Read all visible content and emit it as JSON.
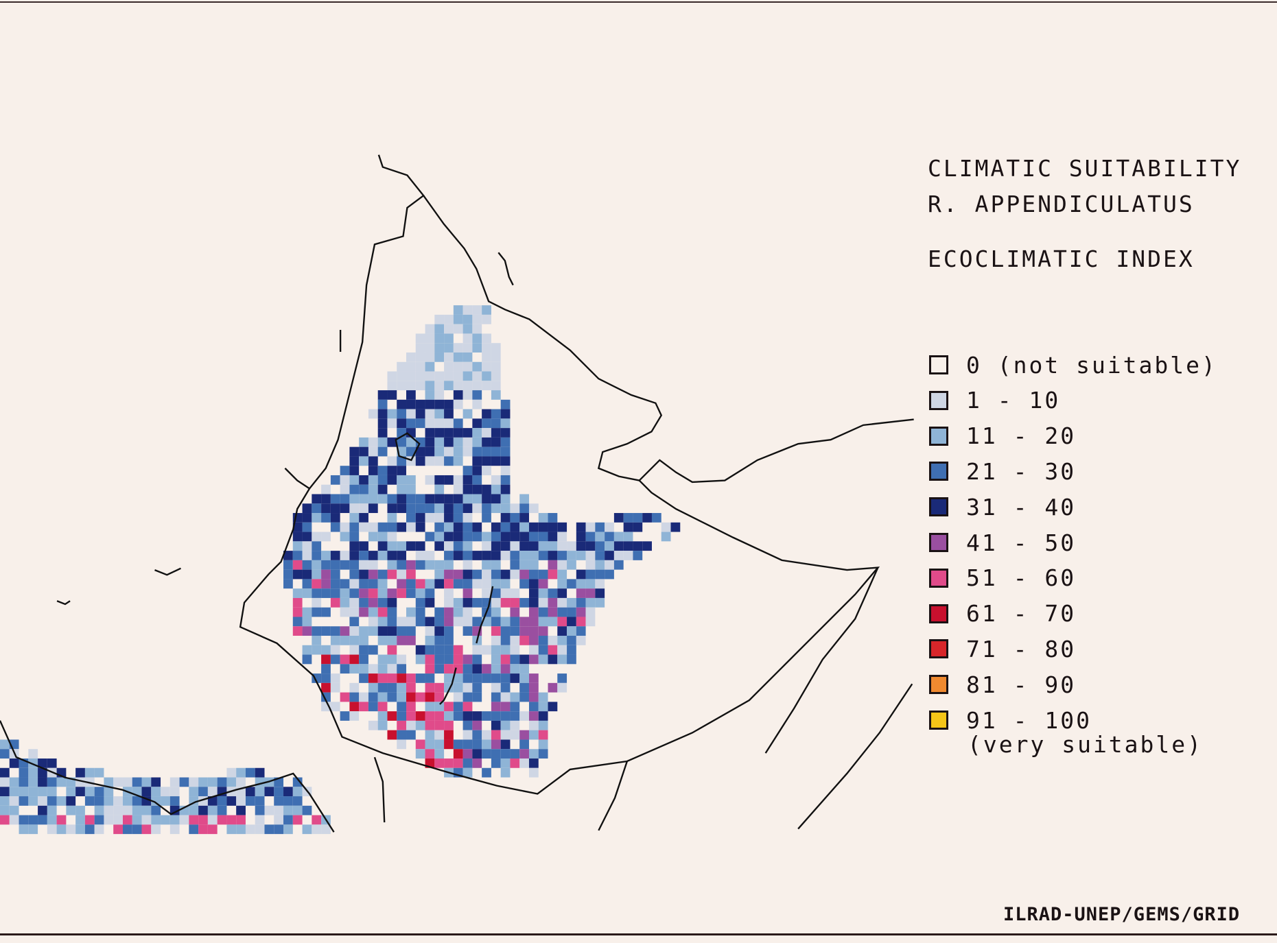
{
  "title": {
    "line1": "CLIMATIC SUITABILITY",
    "line2": "R. APPENDICULATUS",
    "line3": "ECOCLIMATIC INDEX"
  },
  "legend": {
    "items": [
      {
        "label": "0 (not suitable)",
        "color": "#f8f0ea"
      },
      {
        "label": "1 - 10",
        "color": "#cfd6e4"
      },
      {
        "label": "11 - 20",
        "color": "#8fb4d6"
      },
      {
        "label": "21 - 30",
        "color": "#3f6fb2"
      },
      {
        "label": "31 - 40",
        "color": "#1a2a78"
      },
      {
        "label": "41 - 50",
        "color": "#9a4fa0"
      },
      {
        "label": "51 - 60",
        "color": "#e04b8a"
      },
      {
        "label": "61 - 70",
        "color": "#c8102e"
      },
      {
        "label": "71 - 80",
        "color": "#d8262a"
      },
      {
        "label": "81 - 90",
        "color": "#f08a30"
      },
      {
        "label": "91 - 100",
        "color": "#f5c518"
      }
    ],
    "note": "(very suitable)"
  },
  "credit": "ILRAD-UNEP/GEMS/GRID"
}
